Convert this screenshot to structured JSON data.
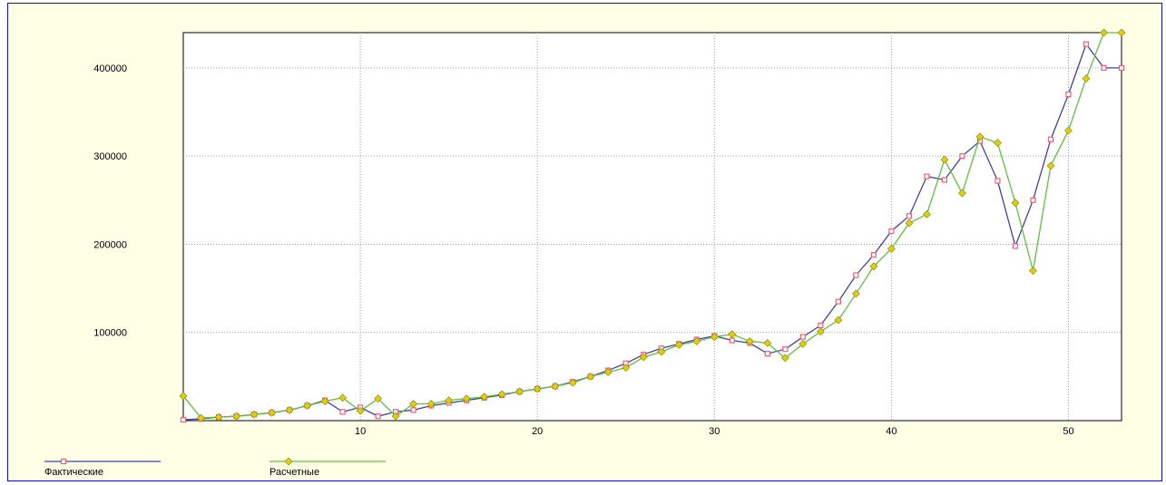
{
  "chart_data": {
    "type": "line",
    "title": "",
    "xlabel": "",
    "ylabel": "",
    "xlim": [
      0,
      53
    ],
    "ylim": [
      0,
      440000
    ],
    "x_ticks": [
      10,
      20,
      30,
      40,
      50
    ],
    "y_ticks": [
      100000,
      200000,
      300000,
      400000
    ],
    "x_tick_labels": [
      "10",
      "20",
      "30",
      "40",
      "50"
    ],
    "y_tick_labels": [
      "100000",
      "200000",
      "300000",
      "400000"
    ],
    "grid": true,
    "legend_position": "bottom-left",
    "x": [
      0,
      1,
      2,
      3,
      4,
      5,
      6,
      7,
      8,
      9,
      10,
      11,
      12,
      13,
      14,
      15,
      16,
      17,
      18,
      19,
      20,
      21,
      22,
      23,
      24,
      25,
      26,
      27,
      28,
      29,
      30,
      31,
      32,
      33,
      34,
      35,
      36,
      37,
      38,
      39,
      40,
      41,
      42,
      43,
      44,
      45,
      46,
      47,
      48,
      49,
      50,
      51,
      52,
      53
    ],
    "series": [
      {
        "name": "Фактические",
        "color": "#4040a8",
        "marker": "square",
        "marker_color": "#f06070",
        "values": [
          1000,
          2000,
          4000,
          5000,
          7000,
          9000,
          12000,
          17000,
          23000,
          10000,
          15000,
          5000,
          10000,
          12000,
          17000,
          20000,
          23000,
          26000,
          29000,
          33000,
          36000,
          39000,
          44000,
          50000,
          57000,
          65000,
          75000,
          82000,
          87000,
          92000,
          96000,
          91000,
          88000,
          76000,
          81000,
          95000,
          108000,
          135000,
          165000,
          188000,
          215000,
          232000,
          277000,
          273000,
          300000,
          317000,
          272000,
          198000,
          250000,
          319000,
          370000,
          427000,
          400000,
          400000
        ]
      },
      {
        "name": "Расчетные",
        "color": "#60c040",
        "marker": "diamond",
        "marker_color": "#d8d010",
        "values": [
          28000,
          3000,
          4000,
          5000,
          7000,
          9000,
          12000,
          17000,
          22000,
          26000,
          11000,
          25000,
          5000,
          19000,
          19000,
          23000,
          25000,
          27000,
          30000,
          33000,
          36000,
          39000,
          43000,
          50000,
          55000,
          60000,
          72000,
          78000,
          86000,
          90000,
          95000,
          98000,
          90000,
          88000,
          71000,
          87000,
          101000,
          114000,
          144000,
          175000,
          195000,
          224000,
          234000,
          296000,
          258000,
          322000,
          315000,
          247000,
          170000,
          289000,
          329000,
          388000,
          440000,
          440000
        ]
      }
    ]
  }
}
